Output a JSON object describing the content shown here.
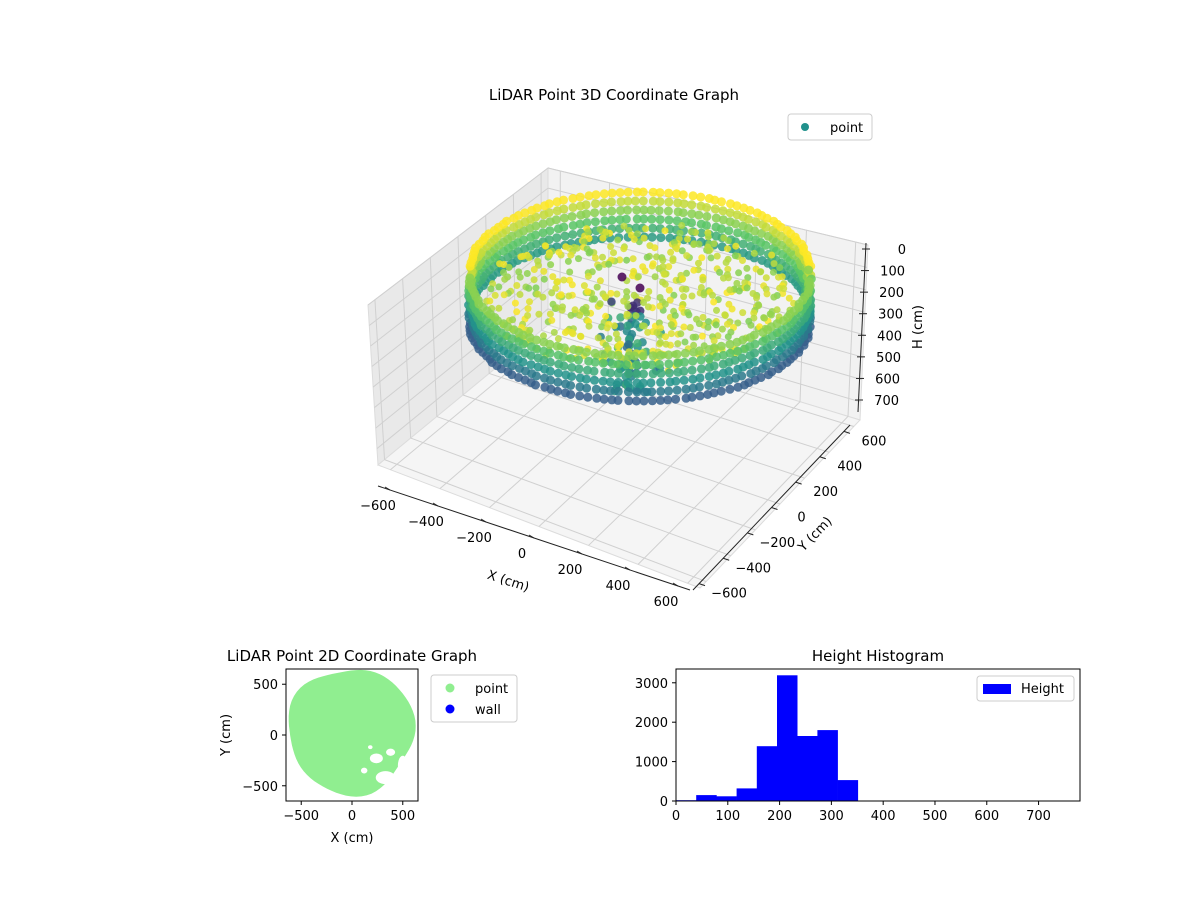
{
  "chart_data": [
    {
      "type": "scatter",
      "projection": "3d",
      "title": "LiDAR Point 3D Coordinate Graph",
      "xlabel": "X (cm)",
      "ylabel": "Y (cm)",
      "zlabel": "H (cm)",
      "xlim": [
        -650,
        650
      ],
      "ylim": [
        -650,
        650
      ],
      "zlim": [
        0,
        780
      ],
      "z_inverted": true,
      "x_ticks": [
        -600,
        -400,
        -200,
        0,
        200,
        400,
        600
      ],
      "y_ticks": [
        -600,
        -400,
        -200,
        0,
        200,
        400,
        600
      ],
      "z_ticks": [
        0,
        100,
        200,
        300,
        400,
        500,
        600,
        700
      ],
      "colormap": "viridis",
      "legend": [
        "point"
      ],
      "legend_position": "top-right",
      "legend_color": "#21918c",
      "grid": true
    },
    {
      "type": "scatter",
      "title": "LiDAR Point 2D Coordinate Graph",
      "xlabel": "X (cm)",
      "ylabel": "Y (cm)",
      "xlim": [
        -650,
        650
      ],
      "ylim": [
        -650,
        650
      ],
      "x_ticks": [
        -500,
        0,
        500
      ],
      "y_ticks": [
        -500,
        0,
        500
      ],
      "series": [
        {
          "name": "point",
          "color": "#90ee90"
        },
        {
          "name": "wall",
          "color": "#0000ff"
        }
      ],
      "legend_position": "outside-right"
    },
    {
      "type": "bar",
      "title": "Height Histogram",
      "xlim": [
        0,
        780
      ],
      "ylim": [
        0,
        3350
      ],
      "x_ticks": [
        0,
        100,
        200,
        300,
        400,
        500,
        600,
        700
      ],
      "y_ticks": [
        0,
        1000,
        2000,
        3000
      ],
      "bins": [
        {
          "x0": 0,
          "x1": 39,
          "value": 20
        },
        {
          "x0": 39,
          "x1": 78,
          "value": 150
        },
        {
          "x0": 78,
          "x1": 117,
          "value": 120
        },
        {
          "x0": 117,
          "x1": 156,
          "value": 320
        },
        {
          "x0": 156,
          "x1": 195,
          "value": 1390
        },
        {
          "x0": 195,
          "x1": 234,
          "value": 3190
        },
        {
          "x0": 234,
          "x1": 273,
          "value": 1650
        },
        {
          "x0": 273,
          "x1": 312,
          "value": 1800
        },
        {
          "x0": 312,
          "x1": 351,
          "value": 530
        },
        {
          "x0": 351,
          "x1": 390,
          "value": 0
        },
        {
          "x0": 390,
          "x1": 429,
          "value": 0
        },
        {
          "x0": 429,
          "x1": 468,
          "value": 0
        },
        {
          "x0": 468,
          "x1": 507,
          "value": 0
        },
        {
          "x0": 507,
          "x1": 546,
          "value": 0
        },
        {
          "x0": 546,
          "x1": 585,
          "value": 0
        },
        {
          "x0": 585,
          "x1": 624,
          "value": 0
        },
        {
          "x0": 624,
          "x1": 663,
          "value": 0
        },
        {
          "x0": 663,
          "x1": 702,
          "value": 0
        },
        {
          "x0": 702,
          "x1": 741,
          "value": 0
        },
        {
          "x0": 741,
          "x1": 780,
          "value": 0
        }
      ],
      "legend": [
        "Height"
      ],
      "legend_position": "top-right",
      "bar_color": "#0000ff"
    }
  ]
}
